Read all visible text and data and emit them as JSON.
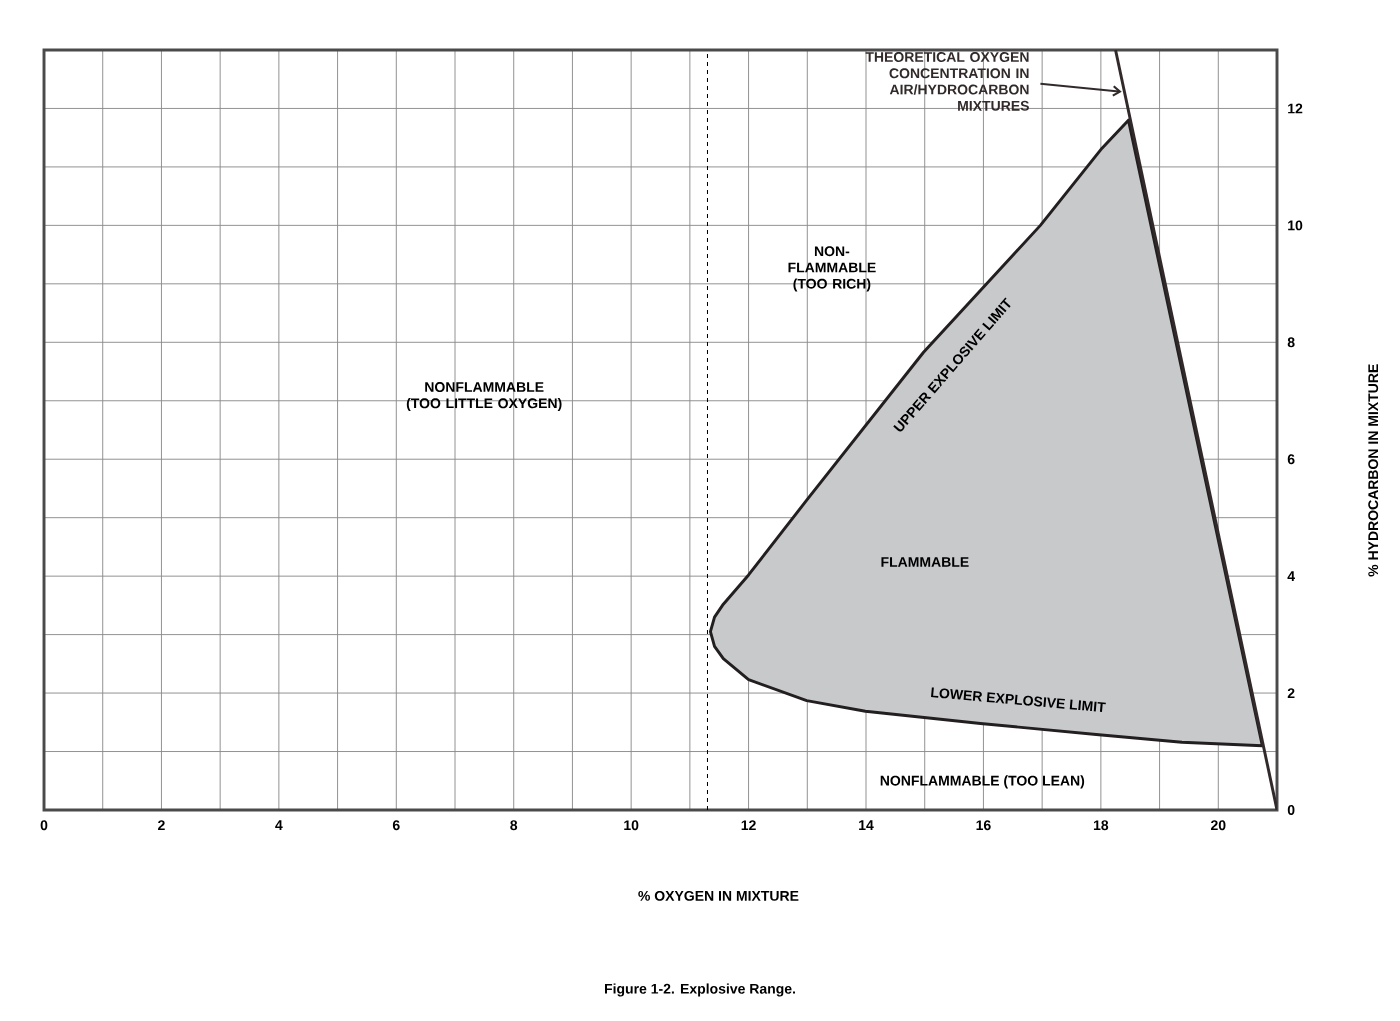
{
  "chart_data": {
    "type": "line",
    "title": "Figure 1-2. Explosive Range.",
    "xlabel": "% OXYGEN IN MIXTURE",
    "ylabel": "% HYDROCARBON IN MIXTURE",
    "xlim": [
      0,
      21
    ],
    "ylim": [
      0,
      13
    ],
    "xticks": [
      0,
      2,
      4,
      6,
      8,
      10,
      12,
      14,
      16,
      18,
      20
    ],
    "yticks": [
      0,
      2,
      4,
      6,
      8,
      10,
      12
    ],
    "grid": true,
    "series": [
      {
        "type": "area",
        "name": "FLAMMABLE",
        "color": "#c8c9cb",
        "x": [
          11.35,
          11.42,
          11.57,
          12.0,
          12.99,
          14.98,
          16.97,
          18.02,
          18.47,
          20.75,
          19.38,
          17.92,
          15.95,
          13.99,
          12.99,
          12.0,
          11.57,
          11.42
        ],
        "values": [
          3.05,
          3.3,
          3.52,
          4.02,
          5.3,
          7.83,
          10.0,
          11.32,
          11.8,
          1.1,
          1.16,
          1.29,
          1.48,
          1.69,
          1.87,
          2.23,
          2.59,
          2.8
        ]
      },
      {
        "name": "THEORETICAL OXYGEN CONCENTRATION IN AIR/HYDROCARBON MIXTURES",
        "color": "#322a2a",
        "x": [
          18.25,
          21
        ],
        "values": [
          13,
          0
        ]
      }
    ],
    "ref_lines": [
      {
        "axis": "x",
        "value": 11.3,
        "line_style": "dashed",
        "color": "#000000"
      }
    ],
    "annotations": [
      "NONFLAMMABLE (TOO LITTLE OXYGEN)",
      "NON-FLAMMABLE (TOO RICH)",
      "UPPER EXPLOSIVE LIMIT",
      "LOWER EXPLOSIVE LIMIT",
      "NONFLAMMABLE (TOO LEAN)"
    ]
  }
}
